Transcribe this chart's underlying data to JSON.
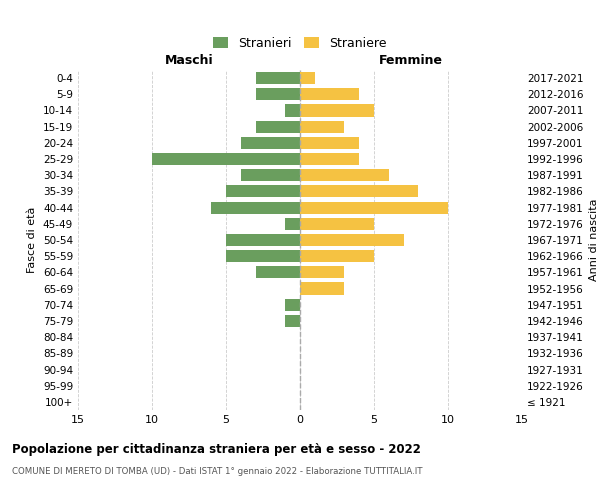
{
  "age_groups": [
    "100+",
    "95-99",
    "90-94",
    "85-89",
    "80-84",
    "75-79",
    "70-74",
    "65-69",
    "60-64",
    "55-59",
    "50-54",
    "45-49",
    "40-44",
    "35-39",
    "30-34",
    "25-29",
    "20-24",
    "15-19",
    "10-14",
    "5-9",
    "0-4"
  ],
  "birth_years": [
    "≤ 1921",
    "1922-1926",
    "1927-1931",
    "1932-1936",
    "1937-1941",
    "1942-1946",
    "1947-1951",
    "1952-1956",
    "1957-1961",
    "1962-1966",
    "1967-1971",
    "1972-1976",
    "1977-1981",
    "1982-1986",
    "1987-1991",
    "1992-1996",
    "1997-2001",
    "2002-2006",
    "2007-2011",
    "2012-2016",
    "2017-2021"
  ],
  "males": [
    0,
    0,
    0,
    0,
    0,
    1,
    1,
    0,
    3,
    5,
    5,
    1,
    6,
    5,
    4,
    10,
    4,
    3,
    1,
    3,
    3
  ],
  "females": [
    0,
    0,
    0,
    0,
    0,
    0,
    0,
    3,
    3,
    5,
    7,
    5,
    10,
    8,
    6,
    4,
    4,
    3,
    5,
    4,
    1
  ],
  "male_color": "#6a9e5e",
  "female_color": "#f5c242",
  "title": "Popolazione per cittadinanza straniera per età e sesso - 2022",
  "subtitle": "COMUNE DI MERETO DI TOMBA (UD) - Dati ISTAT 1° gennaio 2022 - Elaborazione TUTTITALIA.IT",
  "xlabel_left": "Maschi",
  "xlabel_right": "Femmine",
  "ylabel_left": "Fasce di età",
  "ylabel_right": "Anni di nascita",
  "legend_male": "Stranieri",
  "legend_female": "Straniere",
  "xlim": 15,
  "background_color": "#ffffff",
  "grid_color": "#cccccc",
  "bar_height": 0.75
}
